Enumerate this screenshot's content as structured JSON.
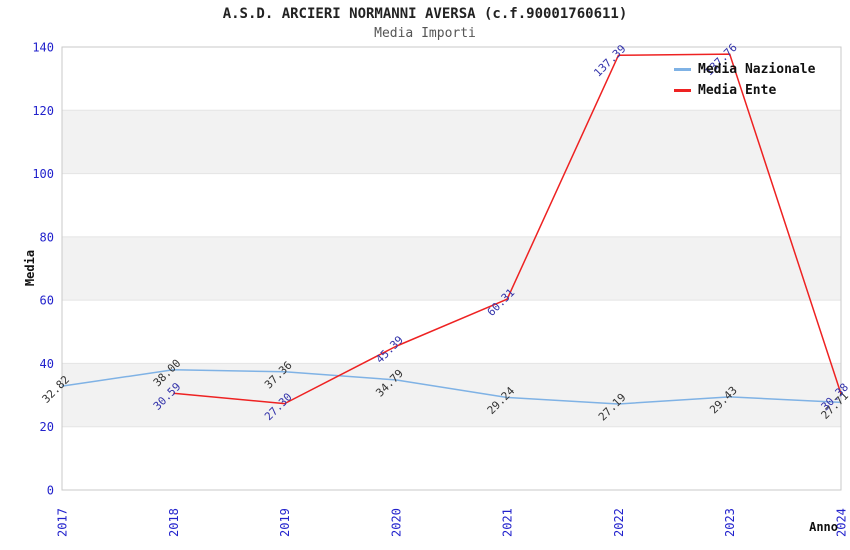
{
  "header": {
    "title": "A.S.D. ARCIERI NORMANNI AVERSA (c.f.90001760611)",
    "subtitle": "Media Importi"
  },
  "chart_data": {
    "type": "line",
    "title": "A.S.D. ARCIERI NORMANNI AVERSA (c.f.90001760611)",
    "subtitle": "Media Importi",
    "categories": [
      "2017",
      "2018",
      "2019",
      "2020",
      "2021",
      "2022",
      "2023",
      "2024"
    ],
    "series": [
      {
        "name": "Media Nazionale",
        "color": "#7fb2e5",
        "label_color": "#333333",
        "values": [
          32.82,
          38.0,
          37.36,
          34.79,
          29.24,
          27.19,
          29.43,
          27.71
        ]
      },
      {
        "name": "Media Ente",
        "color": "#ee2222",
        "label_color": "#3333aa",
        "values": [
          null,
          30.59,
          27.3,
          45.39,
          60.31,
          137.39,
          137.76,
          30.38
        ]
      }
    ],
    "xlabel": "Anno",
    "ylabel": "Media",
    "ylim": [
      0,
      140
    ],
    "ytick_step": 20,
    "yticks": [
      0,
      20,
      40,
      60,
      80,
      100,
      120,
      140
    ],
    "grid": "horizontal-alternating-bands",
    "legend_position": "top-right",
    "colors": {
      "axis_tick": "#2222cc",
      "band": "#f2f2f2",
      "grid_line": "#e4e4e4",
      "plot_border": "#c9c9c9",
      "title": "#222222",
      "subtitle": "#555555"
    }
  }
}
